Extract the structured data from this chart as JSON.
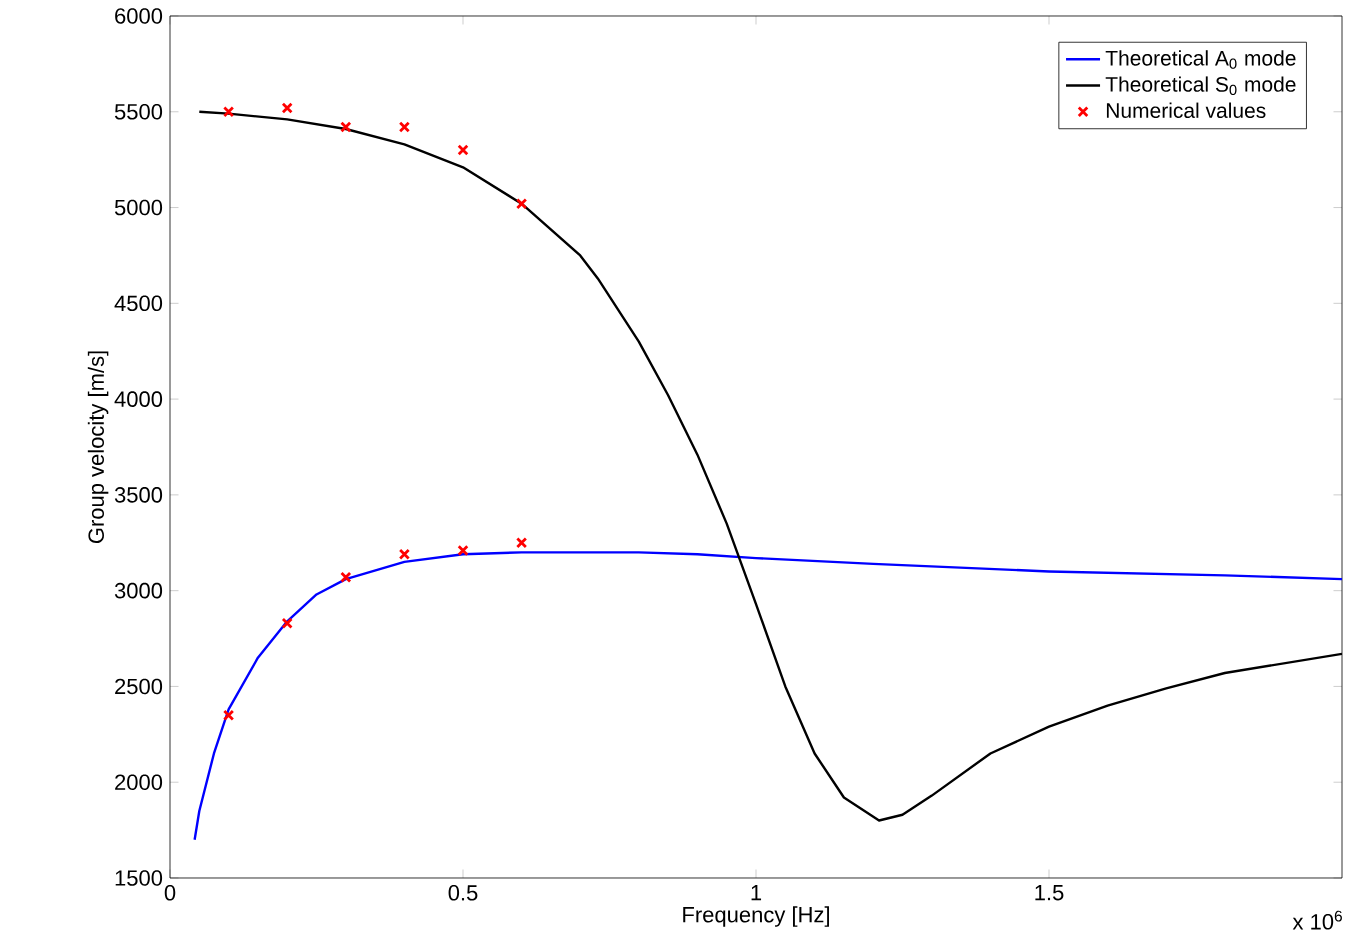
{
  "chart_data": {
    "type": "line",
    "xlabel": "Frequency [Hz]",
    "ylabel": "Group velocity [m/s]",
    "xlim": [
      0,
      2
    ],
    "ylim": [
      1500,
      6000
    ],
    "xticks": [
      0,
      0.5,
      1,
      1.5
    ],
    "yticks": [
      1500,
      2000,
      2500,
      3000,
      3500,
      4000,
      4500,
      5000,
      5500,
      6000
    ],
    "legend": "top right",
    "annotations": [
      "x 10$^{6}$"
    ],
    "series": [
      {
        "name": "Theoretical A$_{0}$ mode",
        "color": "#0000ff",
        "marker": "none",
        "line_style": "solid",
        "x": [
          0.042,
          0.05,
          0.075,
          0.1,
          0.15,
          0.2,
          0.25,
          0.3,
          0.4,
          0.5,
          0.6,
          0.7,
          0.8,
          0.9,
          1.0,
          1.2,
          1.5,
          1.8,
          2.0
        ],
        "values": [
          1700,
          1850,
          2150,
          2380,
          2650,
          2840,
          2980,
          3060,
          3150,
          3190,
          3200,
          3200,
          3200,
          3190,
          3170,
          3140,
          3100,
          3080,
          3060
        ]
      },
      {
        "name": "Theoretical S$_{0}$ mode",
        "color": "#000000",
        "marker": "none",
        "line_style": "solid",
        "x": [
          0.05,
          0.1,
          0.2,
          0.3,
          0.4,
          0.5,
          0.6,
          0.7,
          0.73,
          0.8,
          0.85,
          0.9,
          0.95,
          1.0,
          1.05,
          1.1,
          1.15,
          1.21,
          1.25,
          1.3,
          1.4,
          1.5,
          1.6,
          1.7,
          1.8,
          1.9,
          2.0
        ],
        "values": [
          5500,
          5490,
          5460,
          5410,
          5330,
          5210,
          5020,
          4750,
          4630,
          4300,
          4020,
          3710,
          3350,
          2930,
          2500,
          2150,
          1920,
          1800,
          1830,
          1930,
          2150,
          2290,
          2400,
          2490,
          2570,
          2620,
          2670
        ]
      },
      {
        "name": "Numerical values",
        "type": "scatter",
        "color": "#ff0000",
        "marker": "cross",
        "x": [
          0.1,
          0.2,
          0.3,
          0.4,
          0.5,
          0.6,
          0.1,
          0.2,
          0.3,
          0.4,
          0.5,
          0.6
        ],
        "values": [
          5500,
          5520,
          5420,
          5420,
          5300,
          5020,
          2350,
          2830,
          3070,
          3190,
          3210,
          3250
        ]
      }
    ]
  }
}
